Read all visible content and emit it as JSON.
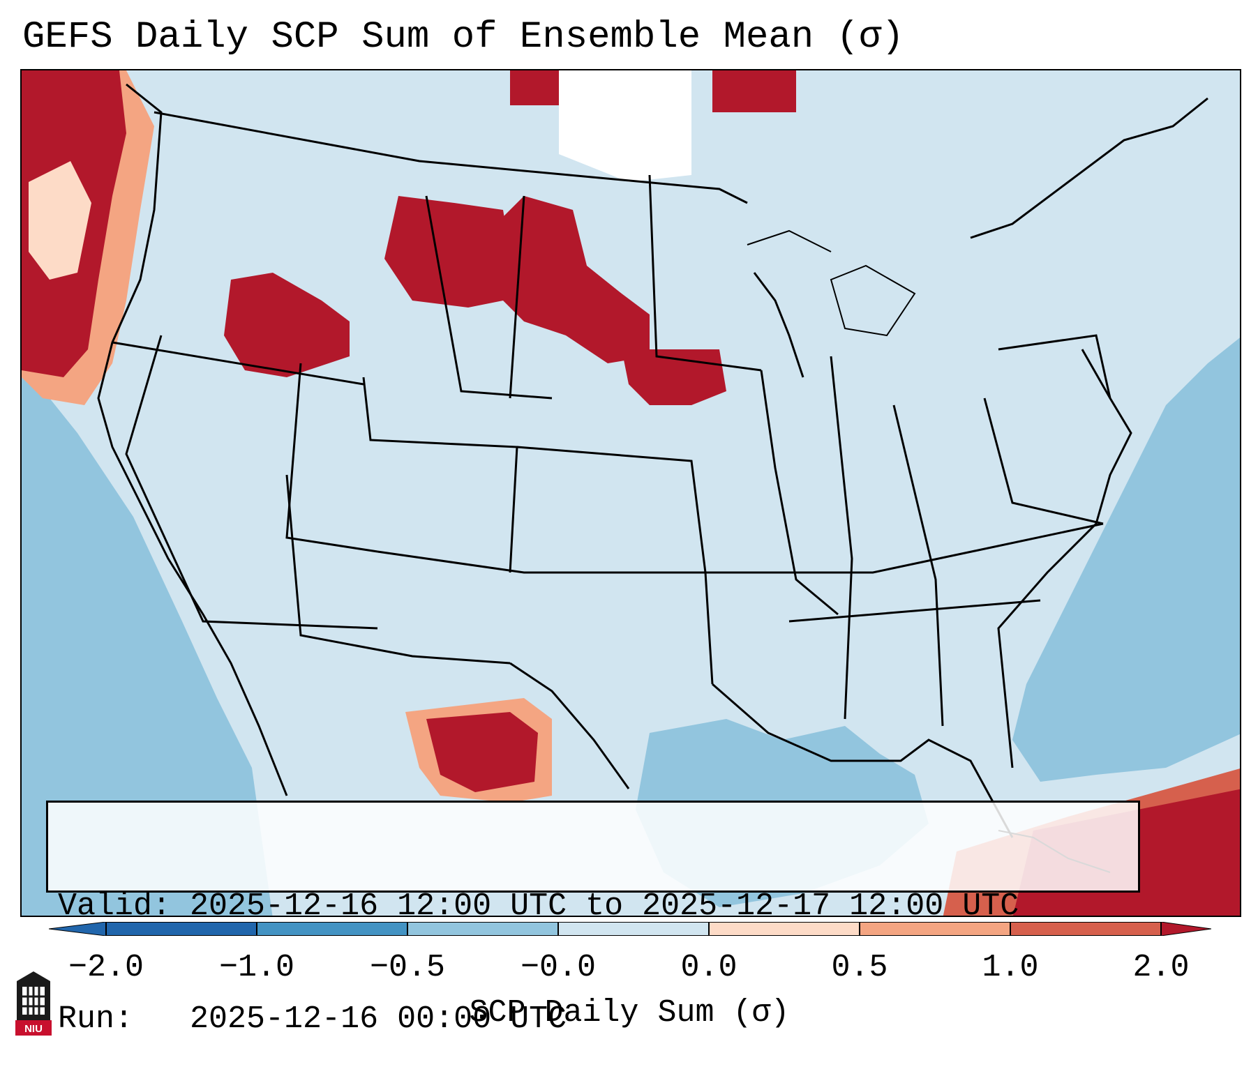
{
  "title": "GEFS Daily SCP Sum of Ensemble Mean (σ)",
  "validity": {
    "valid_line": "Valid: 2025-12-16 12:00 UTC to 2025-12-17 12:00 UTC",
    "run_line": "Run:   2025-12-16 00:00 UTC"
  },
  "colorbar": {
    "label": "SCP Daily Sum (σ)",
    "tick_labels": [
      "−2.0",
      "−1.0",
      "−0.5",
      "−0.0",
      "0.0",
      "0.5",
      "1.0",
      "2.0"
    ],
    "colors": [
      "#2166ac",
      "#4393c3",
      "#92c5de",
      "#d1e5f0",
      "#fddbc7",
      "#f4a582",
      "#d6604d",
      "#b2182b"
    ]
  },
  "chart_data": {
    "type": "heatmap",
    "title": "GEFS Daily SCP Sum of Ensemble Mean (σ)",
    "colorbar_label": "SCP Daily Sum (σ)",
    "bins": [
      {
        "range": [
          -2.0,
          -1.0
        ],
        "color": "#2166ac"
      },
      {
        "range": [
          -1.0,
          -0.5
        ],
        "color": "#4393c3"
      },
      {
        "range": [
          -0.5,
          -0.0
        ],
        "color": "#92c5de"
      },
      {
        "range": [
          -0.0,
          0.0
        ],
        "color": "#d1e5f0"
      },
      {
        "range": [
          0.0,
          0.5
        ],
        "color": "#fddbc7"
      },
      {
        "range": [
          0.5,
          1.0
        ],
        "color": "#f4a582"
      },
      {
        "range": [
          1.0,
          2.0
        ],
        "color": "#d6604d"
      },
      {
        "range": [
          2.0,
          null
        ],
        "color": "#b2182b"
      }
    ]
  },
  "logo": {
    "text": "NIU"
  }
}
